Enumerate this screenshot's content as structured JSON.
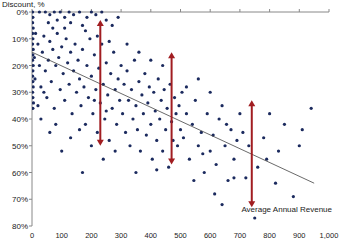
{
  "chart_data": {
    "type": "scatter",
    "y_label": "Discount, %",
    "x_label": "Average Annual Revenue",
    "color": "#1b2a5e",
    "marker": "circle",
    "grid": false,
    "xlim": [
      0,
      1000
    ],
    "ylim": [
      0,
      80
    ],
    "xticks": [
      0,
      100,
      200,
      300,
      400,
      500,
      600,
      700,
      800,
      900,
      {
        "value": 1000,
        "label": "1,000"
      }
    ],
    "yticks": [
      {
        "value": 0,
        "label": "0%"
      },
      {
        "value": 10,
        "label": "10%"
      },
      {
        "value": 20,
        "label": "20%"
      },
      {
        "value": 30,
        "label": "30%"
      },
      {
        "value": 40,
        "label": "40%"
      },
      {
        "value": 50,
        "label": "50%"
      },
      {
        "value": 60,
        "label": "60%"
      },
      {
        "value": 70,
        "label": "70%"
      },
      {
        "value": 80,
        "label": "80%"
      }
    ],
    "x": [
      2,
      3,
      2,
      4,
      2,
      3,
      2,
      4,
      3,
      2,
      4,
      3,
      2,
      3,
      4,
      2,
      3,
      5,
      3,
      8,
      10,
      12,
      25,
      45,
      60,
      75,
      95,
      110,
      125,
      140,
      160,
      185,
      200,
      215,
      235,
      250,
      55,
      85,
      130,
      170,
      270,
      290,
      20,
      25,
      30,
      35,
      40,
      45,
      50,
      55,
      60,
      65,
      70,
      75,
      80,
      85,
      90,
      95,
      100,
      105,
      110,
      115,
      120,
      125,
      130,
      135,
      140,
      145,
      150,
      30,
      60,
      100,
      80,
      130,
      20,
      40,
      70,
      110,
      155,
      160,
      165,
      170,
      175,
      180,
      185,
      190,
      195,
      200,
      205,
      210,
      215,
      220,
      225,
      230,
      235,
      240,
      245,
      250,
      255,
      260,
      265,
      270,
      275,
      280,
      285,
      290,
      295,
      300,
      160,
      200,
      240,
      280,
      180,
      220,
      260,
      170,
      250,
      210,
      305,
      310,
      315,
      320,
      325,
      330,
      335,
      340,
      345,
      350,
      355,
      360,
      365,
      370,
      375,
      380,
      385,
      390,
      395,
      400,
      405,
      410,
      415,
      420,
      425,
      430,
      435,
      440,
      445,
      450,
      455,
      460,
      465,
      470,
      475,
      480,
      485,
      490,
      495,
      500,
      320,
      360,
      400,
      440,
      350,
      420,
      505,
      510,
      520,
      530,
      540,
      550,
      560,
      570,
      580,
      590,
      600,
      610,
      620,
      630,
      640,
      650,
      660,
      670,
      680,
      690,
      700,
      520,
      560,
      600,
      640,
      680,
      545,
      615,
      575,
      655,
      710,
      720,
      730,
      750,
      760,
      780,
      800,
      830,
      850,
      880,
      900,
      910,
      940,
      790,
      820
    ],
    "values": [
      0,
      2,
      4,
      6,
      8,
      10,
      12,
      14,
      16,
      18,
      20,
      22,
      24,
      26,
      28,
      30,
      32,
      34,
      36,
      17,
      25,
      8,
      0,
      0,
      1,
      0,
      0,
      2,
      0,
      1,
      0,
      2,
      0,
      1,
      0,
      3,
      4,
      3,
      4,
      5,
      5,
      2,
      12,
      20,
      28,
      15,
      9,
      22,
      32,
      18,
      11,
      26,
      14,
      36,
      20,
      8,
      17,
      29,
      13,
      23,
      33,
      10,
      19,
      27,
      15,
      38,
      22,
      12,
      30,
      40,
      45,
      52,
      42,
      47,
      35,
      30,
      6,
      6,
      18,
      25,
      35,
      14,
      28,
      42,
      20,
      32,
      10,
      24,
      38,
      16,
      29,
      45,
      21,
      34,
      12,
      27,
      40,
      19,
      31,
      48,
      23,
      36,
      15,
      29,
      42,
      25,
      33,
      20,
      44,
      50,
      55,
      52,
      7,
      9,
      11,
      60,
      37,
      33,
      38,
      27,
      45,
      22,
      33,
      50,
      29,
      40,
      18,
      35,
      44,
      26,
      52,
      31,
      38,
      23,
      46,
      34,
      28,
      42,
      55,
      30,
      37,
      48,
      25,
      40,
      33,
      52,
      29,
      44,
      36,
      58,
      27,
      41,
      48,
      32,
      38,
      50,
      35,
      44,
      12,
      15,
      18,
      20,
      60,
      59,
      30,
      47,
      38,
      55,
      42,
      33,
      50,
      45,
      60,
      38,
      52,
      46,
      57,
      40,
      72,
      50,
      63,
      44,
      55,
      48,
      38,
      28,
      25,
      30,
      35,
      62,
      63,
      68,
      53,
      42,
      45,
      62,
      50,
      77,
      58,
      47,
      38,
      52,
      42,
      69,
      50,
      44,
      36,
      55,
      64
    ],
    "trend_line": {
      "x": [
        0,
        950
      ],
      "values": [
        15,
        64
      ]
    },
    "arrows": [
      {
        "x": 230,
        "from": 3,
        "to": 50
      },
      {
        "x": 470,
        "from": 15,
        "to": 57
      },
      {
        "x": 740,
        "from": 33,
        "to": 73
      }
    ]
  }
}
